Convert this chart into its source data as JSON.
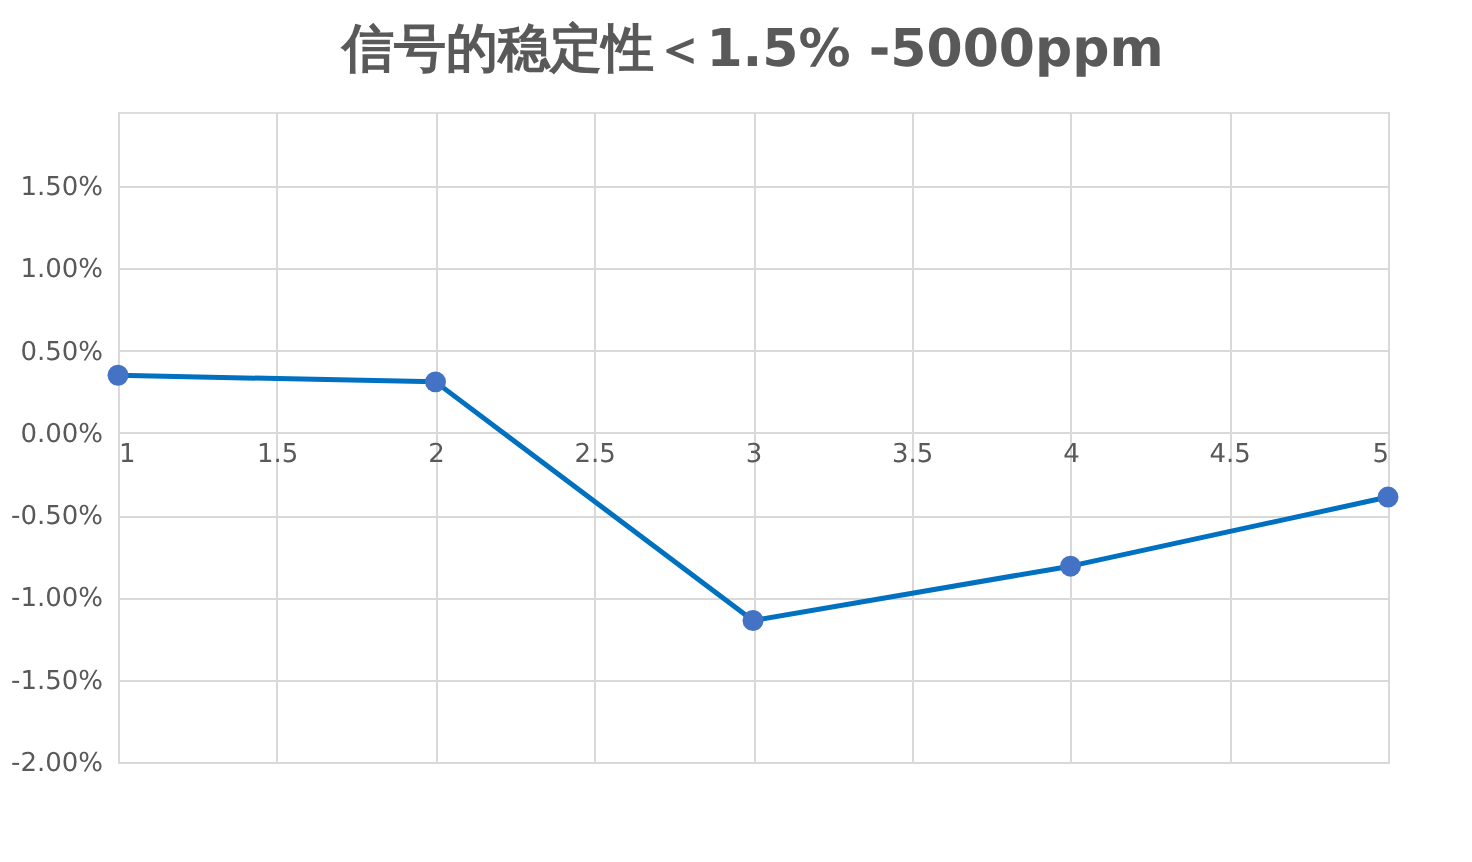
{
  "chart_data": {
    "type": "line",
    "title": "信号的稳定性＜1.5% -5000ppm",
    "x": [
      1,
      2,
      3,
      4,
      5
    ],
    "series": [
      {
        "color": "#0070c0",
        "values": [
          0.35,
          0.31,
          -1.14,
          -0.81,
          -0.39
        ]
      }
    ],
    "marker": "circle",
    "line_style": "solid",
    "grid": true,
    "xlim": [
      1,
      5
    ],
    "xticks": [
      1,
      1.5,
      2,
      2.5,
      3,
      3.5,
      4,
      4.5,
      5
    ],
    "ylim": [
      -2,
      1.95
    ],
    "yticks": [
      {
        "value": -2,
        "label": "-2.00%"
      },
      {
        "value": -1.5,
        "label": "-1.50%"
      },
      {
        "value": -1,
        "label": "-1.00%"
      },
      {
        "value": -0.5,
        "label": "-0.50%"
      },
      {
        "value": 0,
        "label": "0.00%"
      },
      {
        "value": 0.5,
        "label": "0.50%"
      },
      {
        "value": 1,
        "label": "1.00%"
      },
      {
        "value": 1.5,
        "label": "1.50%"
      }
    ]
  }
}
